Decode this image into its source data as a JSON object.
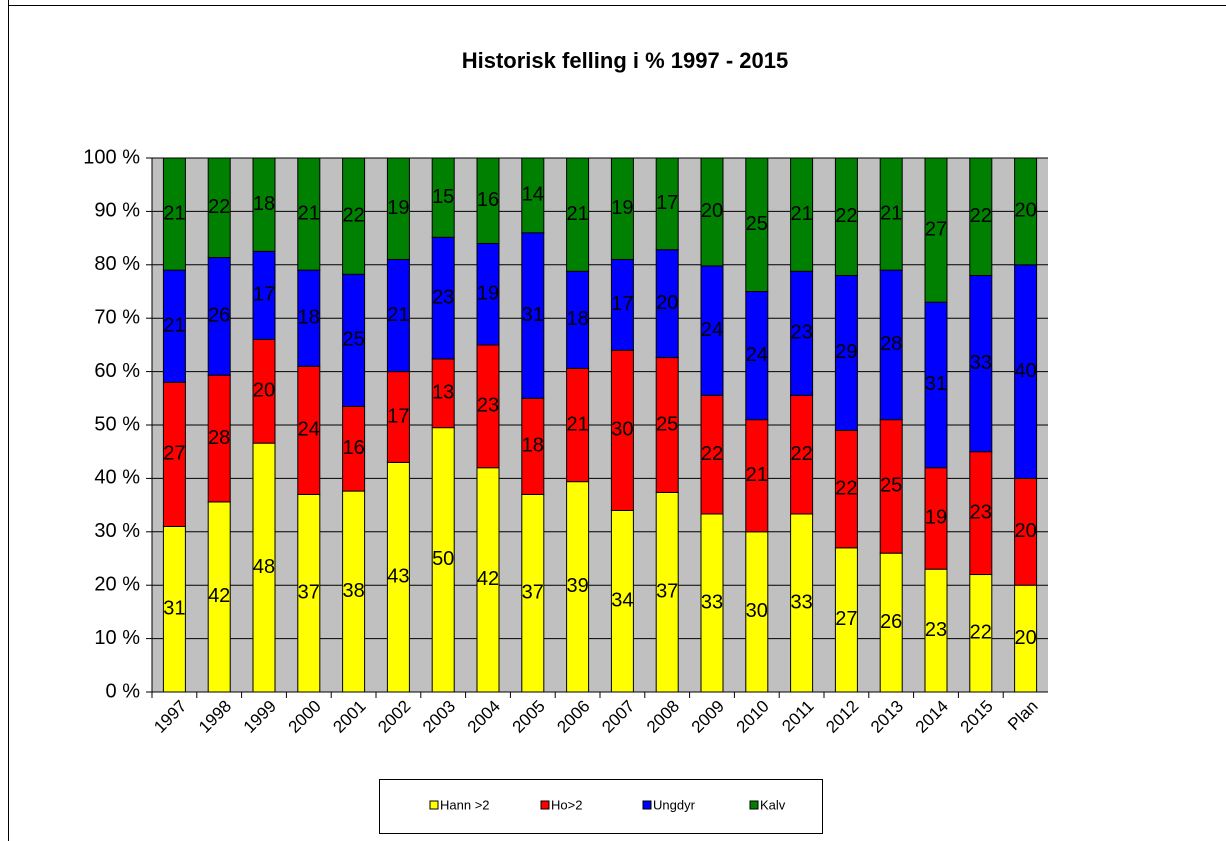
{
  "chart_data": {
    "type": "bar",
    "stacking": "percent",
    "title": "Historisk felling i %  1997 - 2015",
    "categories": [
      "1997",
      "1998",
      "1999",
      "2000",
      "2001",
      "2002",
      "2003",
      "2004",
      "2005",
      "2006",
      "2007",
      "2008",
      "2009",
      "2010",
      "2011",
      "2012",
      "2013",
      "2014",
      "2015",
      "Plan"
    ],
    "series": [
      {
        "name": "Hann >2",
        "color": "#ffff00",
        "values": [
          31,
          42,
          48,
          37,
          38,
          43,
          50,
          42,
          37,
          39,
          34,
          37,
          33,
          30,
          33,
          27,
          26,
          23,
          22,
          20
        ]
      },
      {
        "name": "Ho>2",
        "color": "#ff0000",
        "values": [
          27,
          28,
          20,
          24,
          16,
          17,
          13,
          23,
          18,
          21,
          30,
          25,
          22,
          21,
          22,
          22,
          25,
          19,
          23,
          20
        ]
      },
      {
        "name": "Ungdyr",
        "color": "#0000ff",
        "values": [
          21,
          26,
          17,
          18,
          25,
          21,
          23,
          19,
          31,
          18,
          17,
          20,
          24,
          24,
          23,
          29,
          28,
          31,
          33,
          40
        ]
      },
      {
        "name": "Kalv",
        "color": "#008000",
        "values": [
          21,
          22,
          18,
          21,
          22,
          19,
          15,
          16,
          14,
          21,
          19,
          17,
          20,
          25,
          21,
          22,
          21,
          27,
          22,
          20
        ]
      }
    ],
    "ylim": [
      0,
      100
    ],
    "yticks": [
      {
        "value": 0,
        "label": "0 %"
      },
      {
        "value": 10,
        "label": "10 %"
      },
      {
        "value": 20,
        "label": "20 %"
      },
      {
        "value": 30,
        "label": "30 %"
      },
      {
        "value": 40,
        "label": "40 %"
      },
      {
        "value": 50,
        "label": "50 %"
      },
      {
        "value": 60,
        "label": "60 %"
      },
      {
        "value": 70,
        "label": "70 %"
      },
      {
        "value": 80,
        "label": "80 %"
      },
      {
        "value": 90,
        "label": "90 %"
      },
      {
        "value": 100,
        "label": "100 %"
      }
    ],
    "grid": true,
    "legend": "bottom"
  }
}
